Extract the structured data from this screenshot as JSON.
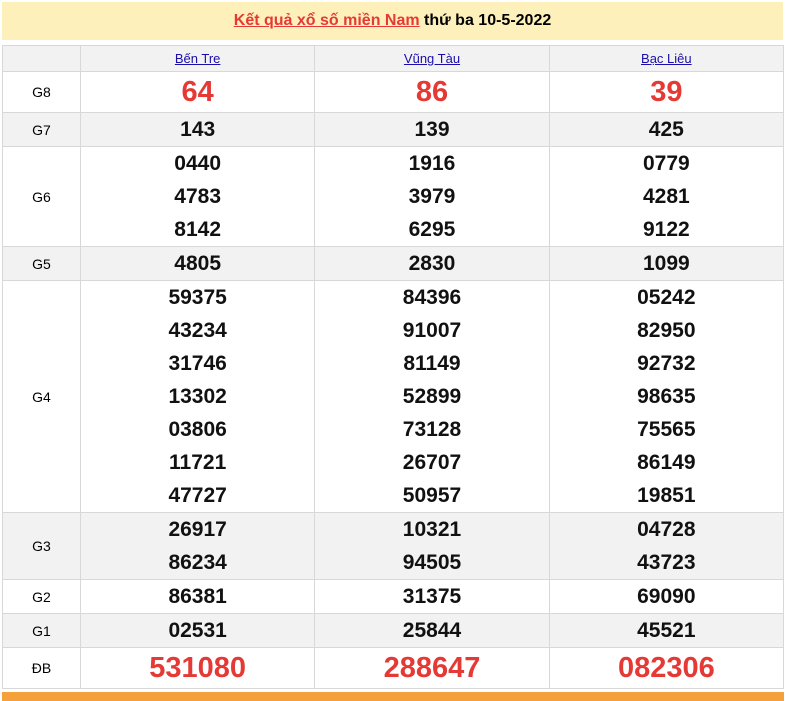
{
  "title": {
    "link": "Kết quả xổ số miền Nam",
    "rest": " thứ ba 10-5-2022"
  },
  "provinces": [
    "Bến Tre",
    "Vũng Tàu",
    "Bạc Liêu"
  ],
  "rows": [
    {
      "label": "G8",
      "big": true,
      "values": [
        [
          "64"
        ],
        [
          "86"
        ],
        [
          "39"
        ]
      ]
    },
    {
      "label": "G7",
      "values": [
        [
          "143"
        ],
        [
          "139"
        ],
        [
          "425"
        ]
      ]
    },
    {
      "label": "G6",
      "values": [
        [
          "0440",
          "4783",
          "8142"
        ],
        [
          "1916",
          "3979",
          "6295"
        ],
        [
          "0779",
          "4281",
          "9122"
        ]
      ]
    },
    {
      "label": "G5",
      "values": [
        [
          "4805"
        ],
        [
          "2830"
        ],
        [
          "1099"
        ]
      ]
    },
    {
      "label": "G4",
      "values": [
        [
          "59375",
          "43234",
          "31746",
          "13302",
          "03806",
          "11721",
          "47727"
        ],
        [
          "84396",
          "91007",
          "81149",
          "52899",
          "73128",
          "26707",
          "50957"
        ],
        [
          "05242",
          "82950",
          "92732",
          "98635",
          "75565",
          "86149",
          "19851"
        ]
      ]
    },
    {
      "label": "G3",
      "values": [
        [
          "26917",
          "86234"
        ],
        [
          "10321",
          "94505"
        ],
        [
          "04728",
          "43723"
        ]
      ]
    },
    {
      "label": "G2",
      "values": [
        [
          "86381"
        ],
        [
          "31375"
        ],
        [
          "69090"
        ]
      ]
    },
    {
      "label": "G1",
      "values": [
        [
          "02531"
        ],
        [
          "25844"
        ],
        [
          "45521"
        ]
      ]
    },
    {
      "label": "ĐB",
      "big": true,
      "values": [
        [
          "531080"
        ],
        [
          "288647"
        ],
        [
          "082306"
        ]
      ]
    }
  ],
  "colors": {
    "accent": "#e53935",
    "title_bg": "#fdf0bb",
    "footer_bar": "#f4a13c"
  }
}
